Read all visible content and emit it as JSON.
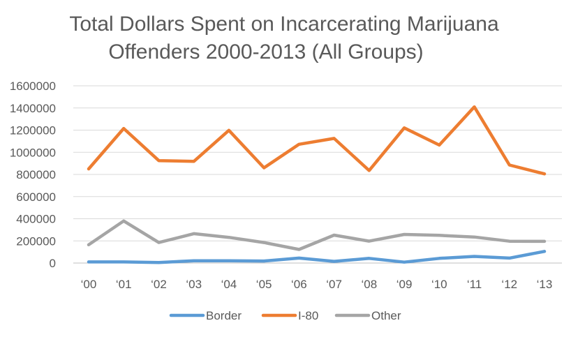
{
  "chart_data": {
    "type": "line",
    "title_lines": [
      "Total Dollars Spent on Incarcerating Marijuana",
      "Offenders 2000-2013 (All Groups)"
    ],
    "categories": [
      "‘00",
      "‘01",
      "‘02",
      "‘03",
      "‘04",
      "‘05",
      "‘06",
      "‘07",
      "‘08",
      "‘09",
      "‘10",
      "‘11",
      "‘12",
      "‘13"
    ],
    "ylim": [
      0,
      1600000
    ],
    "yticks": [
      0,
      200000,
      400000,
      600000,
      800000,
      1000000,
      1200000,
      1400000,
      1600000
    ],
    "ytick_labels": [
      "0",
      "200000",
      "400000",
      "600000",
      "800000",
      "1000000",
      "1200000",
      "1400000",
      "1600000"
    ],
    "grid": true,
    "legend_position": "bottom",
    "series": [
      {
        "name": "Border",
        "color": "#5B9BD5",
        "values": [
          10000,
          10000,
          5000,
          20000,
          20000,
          18000,
          45000,
          15000,
          42000,
          8000,
          42000,
          60000,
          45000,
          105000
        ]
      },
      {
        "name": "I-80",
        "color": "#ED7D31",
        "values": [
          850000,
          1215000,
          925000,
          918000,
          1198000,
          860000,
          1072000,
          1125000,
          835000,
          1220000,
          1065000,
          1410000,
          885000,
          805000
        ]
      },
      {
        "name": "Other",
        "color": "#A5A5A5",
        "values": [
          165000,
          380000,
          185000,
          265000,
          232000,
          185000,
          123000,
          252000,
          198000,
          258000,
          250000,
          235000,
          197000,
          196000
        ]
      }
    ]
  }
}
